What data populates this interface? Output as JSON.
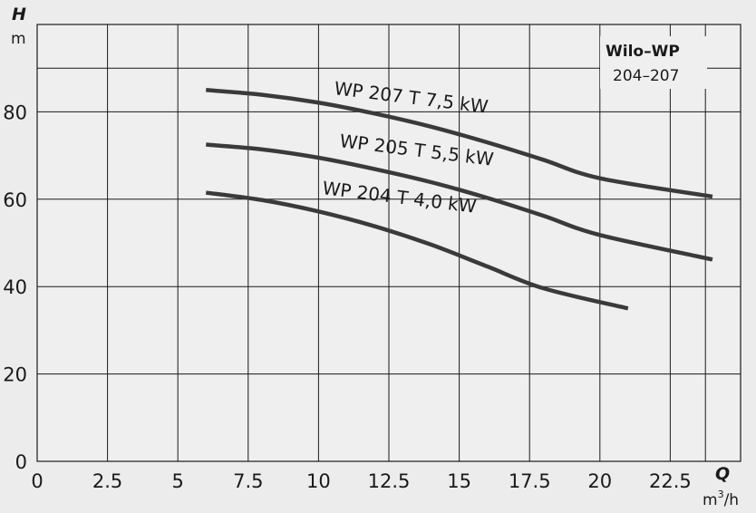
{
  "chart_data": {
    "type": "line",
    "title": "Wilo–WP",
    "subtitle": "204–207",
    "y_axis": {
      "letter": "H",
      "unit": "m"
    },
    "x_axis": {
      "letter": "Q",
      "unit_base": "m",
      "unit_sup": "3",
      "unit_tail": "/h"
    },
    "xlim": [
      0,
      25
    ],
    "ylim": [
      0,
      100
    ],
    "x_ticks": [
      0,
      2.5,
      5,
      7.5,
      10,
      12.5,
      15,
      17.5,
      20,
      22.5
    ],
    "x_tick_labels": [
      "0",
      "2.5",
      "5",
      "7.5",
      "10",
      "12.5",
      "15",
      "17.5",
      "20",
      "22.5"
    ],
    "y_ticks": [
      0,
      20,
      40,
      60,
      80
    ],
    "y_tick_labels": [
      "0",
      "20",
      "40",
      "60",
      "80"
    ],
    "grid": true,
    "series": [
      {
        "name": "WP 207 T 7,5 kW",
        "x": [
          6,
          8,
          10,
          12,
          14,
          16,
          18,
          20,
          24
        ],
        "y": [
          85,
          83.9,
          82.1,
          79.6,
          76.6,
          73.0,
          69.0,
          64.8,
          60.6
        ]
      },
      {
        "name": "WP 205 T 5,5 kW",
        "x": [
          6,
          8,
          10,
          12,
          14,
          16,
          18,
          20,
          24
        ],
        "y": [
          72.5,
          71.4,
          69.5,
          66.9,
          63.9,
          60.3,
          56.2,
          51.8,
          46.2
        ]
      },
      {
        "name": "WP 204 T 4,0 kW",
        "x": [
          6,
          8,
          10,
          12,
          14,
          16,
          18,
          21
        ],
        "y": [
          61.5,
          59.8,
          57.2,
          53.8,
          49.6,
          44.6,
          39.6,
          35.0
        ]
      }
    ]
  }
}
